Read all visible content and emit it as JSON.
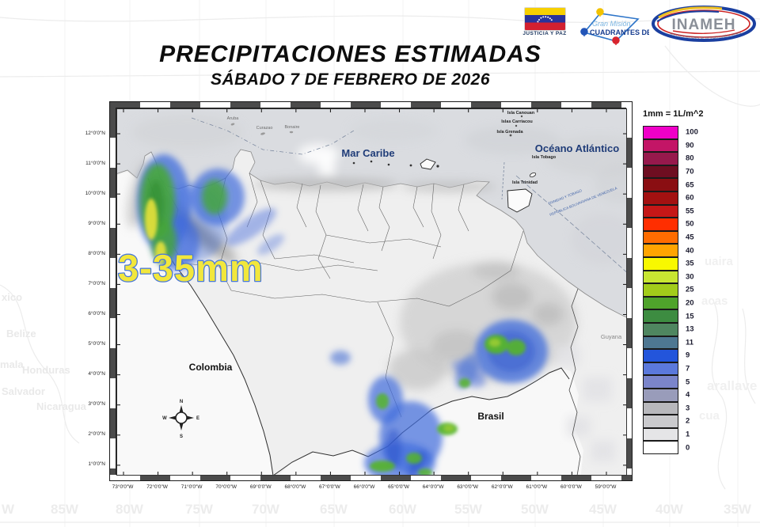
{
  "header": {
    "title": "PRECIPITACIONES ESTIMADAS",
    "subtitle": "SÁBADO 7 DE FEBRERO DE 2026",
    "logos": {
      "flag_caption": "JUSTICIA Y PAZ",
      "mission_line1": "Gran Misión",
      "mission_line2": "CUADRANTES DE PAZ",
      "inameh": "INAMEH",
      "inameh_sub": "INSTITUTO NACIONAL DE METEOROLOGÍA E HIDROLOGÍA"
    }
  },
  "map": {
    "annotation": "3-35mm",
    "sea_labels": {
      "caribe": "Mar Caribe",
      "atlantico": "Océano Atlántico"
    },
    "country_labels": {
      "colombia": "Colombia",
      "brasil": "Brasil",
      "guyana": "Guyana"
    },
    "island_labels": [
      "Isla Canouan",
      "Islas Carriacou",
      "Isla Grenada",
      "Isla Tobago",
      "Isla Trinidad"
    ],
    "antilles_labels": [
      "Aruba",
      "Curazao",
      "Bonaire"
    ],
    "boundary_labels": [
      "TRINIDAD Y TOBAGO",
      "REPÚBLICA BOLIVARIANA DE VENEZUELA"
    ],
    "compass": {
      "n": "N",
      "e": "E",
      "s": "S",
      "w": "W"
    },
    "lat_labels": [
      "12°0'0\"N",
      "11°0'0\"N",
      "10°0'0\"N",
      "9°0'0\"N",
      "8°0'0\"N",
      "7°0'0\"N",
      "6°0'0\"N",
      "5°0'0\"N",
      "4°0'0\"N",
      "3°0'0\"N",
      "2°0'0\"N",
      "1°0'0\"N"
    ],
    "lon_labels": [
      "73°0'0\"W",
      "72°0'0\"W",
      "71°0'0\"W",
      "70°0'0\"W",
      "69°0'0\"W",
      "68°0'0\"W",
      "67°0'0\"W",
      "66°0'0\"W",
      "65°0'0\"W",
      "64°0'0\"W",
      "63°0'0\"W",
      "62°0'0\"W",
      "61°0'0\"W",
      "60°0'0\"W",
      "59°0'0\"W"
    ]
  },
  "legend": {
    "title": "1mm = 1L/m^2",
    "entries": [
      {
        "value": "100",
        "color": "#F000C8"
      },
      {
        "value": "90",
        "color": "#C31566"
      },
      {
        "value": "80",
        "color": "#97194C"
      },
      {
        "value": "70",
        "color": "#6E0E21"
      },
      {
        "value": "65",
        "color": "#8A0E12"
      },
      {
        "value": "60",
        "color": "#A31111"
      },
      {
        "value": "55",
        "color": "#C51717"
      },
      {
        "value": "50",
        "color": "#FF2E00"
      },
      {
        "value": "45",
        "color": "#FF6C00"
      },
      {
        "value": "40",
        "color": "#FFA400"
      },
      {
        "value": "35",
        "color": "#F8F800"
      },
      {
        "value": "30",
        "color": "#C8E632"
      },
      {
        "value": "25",
        "color": "#A2CC1A"
      },
      {
        "value": "20",
        "color": "#4FA32B"
      },
      {
        "value": "15",
        "color": "#3D8C41"
      },
      {
        "value": "13",
        "color": "#4F8660"
      },
      {
        "value": "11",
        "color": "#4E7792"
      },
      {
        "value": "9",
        "color": "#2355DB"
      },
      {
        "value": "7",
        "color": "#5B79DC"
      },
      {
        "value": "5",
        "color": "#7B85CB"
      },
      {
        "value": "4",
        "color": "#999CBA"
      },
      {
        "value": "3",
        "color": "#B8B8BC"
      },
      {
        "value": "2",
        "color": "#CACACD"
      },
      {
        "value": "1",
        "color": "#E5E5E7"
      },
      {
        "value": "0",
        "color": "#FFFFFF"
      }
    ]
  },
  "background": {
    "bottom_labels": [
      "W",
      "85W",
      "80W",
      "75W",
      "70W",
      "65W",
      "60W",
      "55W",
      "50W",
      "45W",
      "40W",
      "35W"
    ],
    "left_labels": [
      "xico",
      "Belize",
      "mala",
      "Honduras",
      "Salvador",
      "Nicaragua"
    ],
    "right_labels": [
      "uaira",
      "acas",
      "arallave",
      "cua"
    ]
  }
}
